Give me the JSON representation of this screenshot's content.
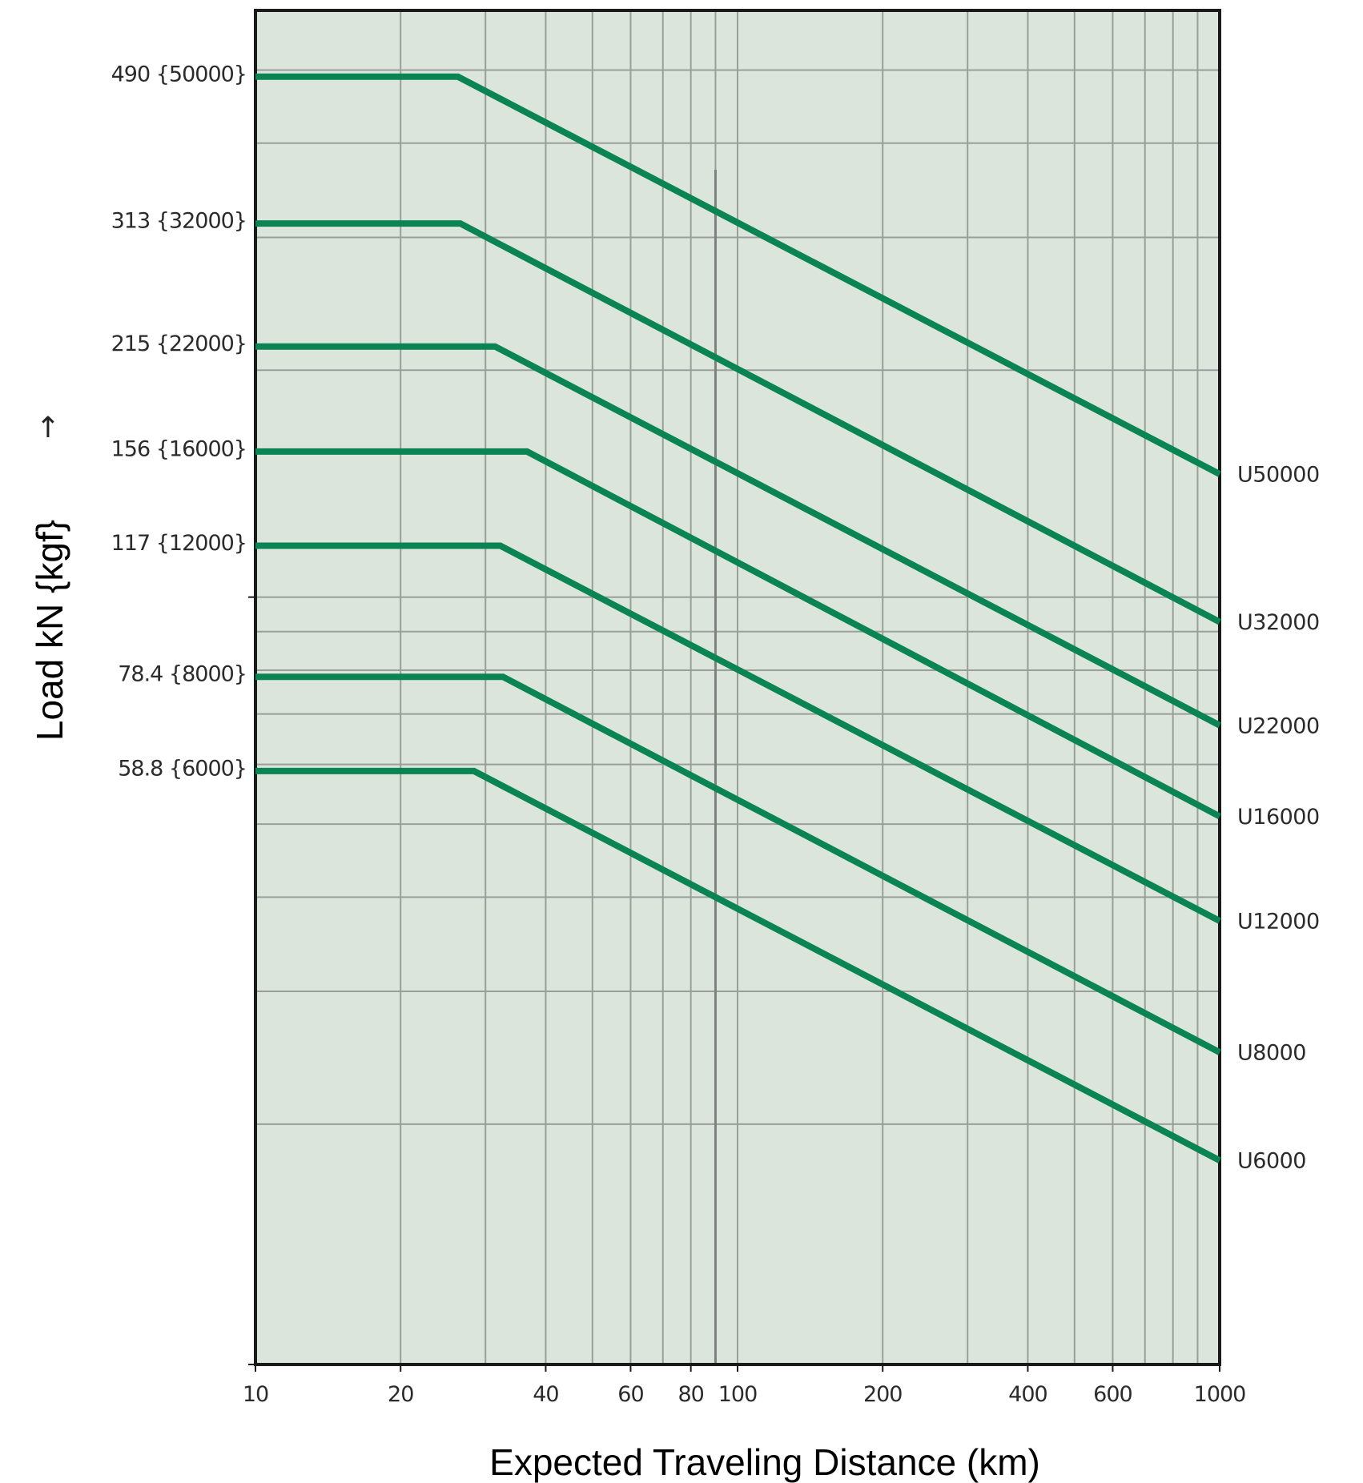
{
  "colors": {
    "plot_background": "#dbe5dc",
    "grid": "#9a9e9a",
    "frame": "#1a1a1a",
    "series": "#0a8452",
    "text": "#2b2b2b"
  },
  "chart_data": {
    "type": "line",
    "title": "",
    "xlabel": "Expected Traveling Distance (km)",
    "ylabel": "Load kN {kgf}",
    "ylabel_arrow": "↑",
    "x_scale": "log",
    "y_scale": "log",
    "xlim": [
      10,
      1000
    ],
    "ylim": [
      9.6,
      600
    ],
    "grid": true,
    "x_tick_labels": [
      "10",
      "20",
      "40",
      "60",
      "80",
      "100",
      "200",
      "400",
      "600",
      "1000"
    ],
    "x_tick_values": [
      10,
      20,
      40,
      60,
      80,
      100,
      200,
      400,
      600,
      1000
    ],
    "x_gridlines": [
      20,
      30,
      40,
      50,
      60,
      70,
      80,
      90,
      100,
      200,
      300,
      400,
      500,
      600,
      700,
      800,
      900
    ],
    "y_gridlines": [
      500,
      400,
      300,
      200,
      100,
      90,
      80,
      70,
      60,
      50,
      40,
      30,
      20
    ],
    "y_tick_labels": [
      {
        "value": 490,
        "label": "490 {50000}"
      },
      {
        "value": 313,
        "label": "313 {32000}"
      },
      {
        "value": 215,
        "label": "215 {22000}"
      },
      {
        "value": 156,
        "label": "156 {16000}"
      },
      {
        "value": 117,
        "label": "117 {12000}"
      },
      {
        "value": 78.4,
        "label": "78.4 {8000}"
      },
      {
        "value": 58.8,
        "label": "58.8 {6000}"
      }
    ],
    "series": [
      {
        "name": "U50000",
        "points": [
          [
            10,
            490
          ],
          [
            26.3,
            490
          ],
          [
            1000,
            145.6
          ]
        ]
      },
      {
        "name": "U32000",
        "points": [
          [
            10,
            313
          ],
          [
            26.6,
            313
          ],
          [
            1000,
            92.7
          ]
        ]
      },
      {
        "name": "U22000",
        "points": [
          [
            10,
            215
          ],
          [
            31.4,
            215
          ],
          [
            1000,
            67.6
          ]
        ]
      },
      {
        "name": "U16000",
        "points": [
          [
            10,
            156
          ],
          [
            36.6,
            156
          ],
          [
            1000,
            51.2
          ]
        ]
      },
      {
        "name": "U12000",
        "points": [
          [
            10,
            117
          ],
          [
            32.2,
            117
          ],
          [
            1000,
            37.2
          ]
        ]
      },
      {
        "name": "U8000",
        "points": [
          [
            10,
            78.4
          ],
          [
            32.6,
            78.4
          ],
          [
            1000,
            24.9
          ]
        ]
      },
      {
        "name": "U6000",
        "points": [
          [
            10,
            58.8
          ],
          [
            28.4,
            58.8
          ],
          [
            1000,
            17.9
          ]
        ]
      }
    ],
    "legend_position": "right (labels at line ends)"
  }
}
